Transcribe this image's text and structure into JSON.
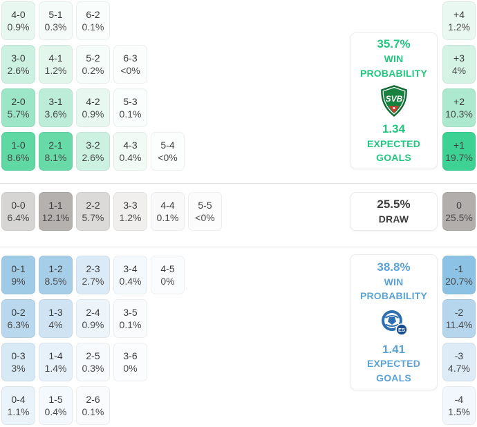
{
  "accents": {
    "home_green": "#21c77e",
    "away_blue": "#5ba3d6",
    "draw_gray": "#3d3d3d",
    "divider": "#e4e4e4"
  },
  "home": {
    "panel": {
      "win_pct": "35.7%",
      "win_line1": "WIN",
      "win_line2": "PROBABILITY",
      "team_code": "SVB",
      "xg": "1.34",
      "xg_line1": "EXPECTED",
      "xg_line2": "GOALS"
    },
    "rows": [
      [
        {
          "score": "4-0",
          "pct": "0.9%",
          "bg": "#e8f8f0"
        },
        {
          "score": "5-1",
          "pct": "0.3%",
          "bg": "#f4fbf8"
        },
        {
          "score": "6-2",
          "pct": "0.1%",
          "bg": "#f9fdfb"
        }
      ],
      [
        {
          "score": "3-0",
          "pct": "2.6%",
          "bg": "#ccf1e0"
        },
        {
          "score": "4-1",
          "pct": "1.2%",
          "bg": "#e2f6ec"
        },
        {
          "score": "5-2",
          "pct": "0.2%",
          "bg": "#f6fcf9"
        },
        {
          "score": "6-3",
          "pct": "<0%",
          "bg": "#fbfdfc"
        }
      ],
      [
        {
          "score": "2-0",
          "pct": "5.7%",
          "bg": "#9ce6c7"
        },
        {
          "score": "3-1",
          "pct": "3.6%",
          "bg": "#bdedd8"
        },
        {
          "score": "4-2",
          "pct": "0.9%",
          "bg": "#e8f8f0"
        },
        {
          "score": "5-3",
          "pct": "0.1%",
          "bg": "#f9fdfb"
        }
      ],
      [
        {
          "score": "1-0",
          "pct": "8.6%",
          "bg": "#60d8a4"
        },
        {
          "score": "2-1",
          "pct": "8.1%",
          "bg": "#68daa8"
        },
        {
          "score": "3-2",
          "pct": "2.6%",
          "bg": "#ccf1e0"
        },
        {
          "score": "4-3",
          "pct": "0.4%",
          "bg": "#f1faf5"
        },
        {
          "score": "5-4",
          "pct": "<0%",
          "bg": "#fcfdfd"
        }
      ]
    ],
    "badges": [
      {
        "diff": "+4",
        "pct": "1.2%",
        "bg": "#e9f8f0"
      },
      {
        "diff": "+3",
        "pct": "4%",
        "bg": "#d4f3e4"
      },
      {
        "diff": "+2",
        "pct": "10.3%",
        "bg": "#ace9ce"
      },
      {
        "diff": "+1",
        "pct": "19.7%",
        "bg": "#3dd294"
      }
    ]
  },
  "draw": {
    "panel": {
      "pct": "25.5%",
      "label": "DRAW"
    },
    "cells": [
      {
        "score": "0-0",
        "pct": "6.4%",
        "bg": "#d7d5d3"
      },
      {
        "score": "1-1",
        "pct": "12.1%",
        "bg": "#b4b1ae"
      },
      {
        "score": "2-2",
        "pct": "5.7%",
        "bg": "#dcdad8"
      },
      {
        "score": "3-3",
        "pct": "1.2%",
        "bg": "#f0efee"
      },
      {
        "score": "4-4",
        "pct": "0.1%",
        "bg": "#f9f9f9"
      },
      {
        "score": "5-5",
        "pct": "<0%",
        "bg": "#fcfcfc"
      }
    ],
    "badges": [
      {
        "diff": "0",
        "pct": "25.5%",
        "bg": "#b1aeab"
      }
    ]
  },
  "away": {
    "panel": {
      "win_pct": "38.8%",
      "win_line1": "WIN",
      "win_line2": "PROBABILITY",
      "badge_code": "ES",
      "xg": "1.41",
      "xg_line1": "EXPECTED",
      "xg_line2": "GOALS"
    },
    "rows": [
      [
        {
          "score": "0-1",
          "pct": "9%",
          "bg": "#a0cbe7"
        },
        {
          "score": "1-2",
          "pct": "8.5%",
          "bg": "#a6cee9"
        },
        {
          "score": "2-3",
          "pct": "2.7%",
          "bg": "#daeaf6"
        },
        {
          "score": "3-4",
          "pct": "0.4%",
          "bg": "#f4f9fd"
        },
        {
          "score": "4-5",
          "pct": "0%",
          "bg": "#fbfcfe"
        }
      ],
      [
        {
          "score": "0-2",
          "pct": "6.3%",
          "bg": "#b9d8ee"
        },
        {
          "score": "1-3",
          "pct": "4%",
          "bg": "#cfe3f3"
        },
        {
          "score": "2-4",
          "pct": "0.9%",
          "bg": "#edf5fb"
        },
        {
          "score": "3-5",
          "pct": "0.1%",
          "bg": "#f9fbfd"
        }
      ],
      [
        {
          "score": "0-3",
          "pct": "3%",
          "bg": "#d7e9f5"
        },
        {
          "score": "1-4",
          "pct": "1.4%",
          "bg": "#e7f1fa"
        },
        {
          "score": "2-5",
          "pct": "0.3%",
          "bg": "#f6fafd"
        },
        {
          "score": "3-6",
          "pct": "0%",
          "bg": "#fbfcfe"
        }
      ],
      [
        {
          "score": "0-4",
          "pct": "1.1%",
          "bg": "#eaf3fa"
        },
        {
          "score": "1-5",
          "pct": "0.4%",
          "bg": "#f4f9fd"
        },
        {
          "score": "2-6",
          "pct": "0.1%",
          "bg": "#f9fbfd"
        }
      ]
    ],
    "badges": [
      {
        "diff": "-1",
        "pct": "20.7%",
        "bg": "#8cc3e4"
      },
      {
        "diff": "-2",
        "pct": "11.4%",
        "bg": "#b5d6ed"
      },
      {
        "diff": "-3",
        "pct": "4.7%",
        "bg": "#dcebf6"
      },
      {
        "diff": "-4",
        "pct": "1.5%",
        "bg": "#f1f7fc"
      }
    ]
  }
}
